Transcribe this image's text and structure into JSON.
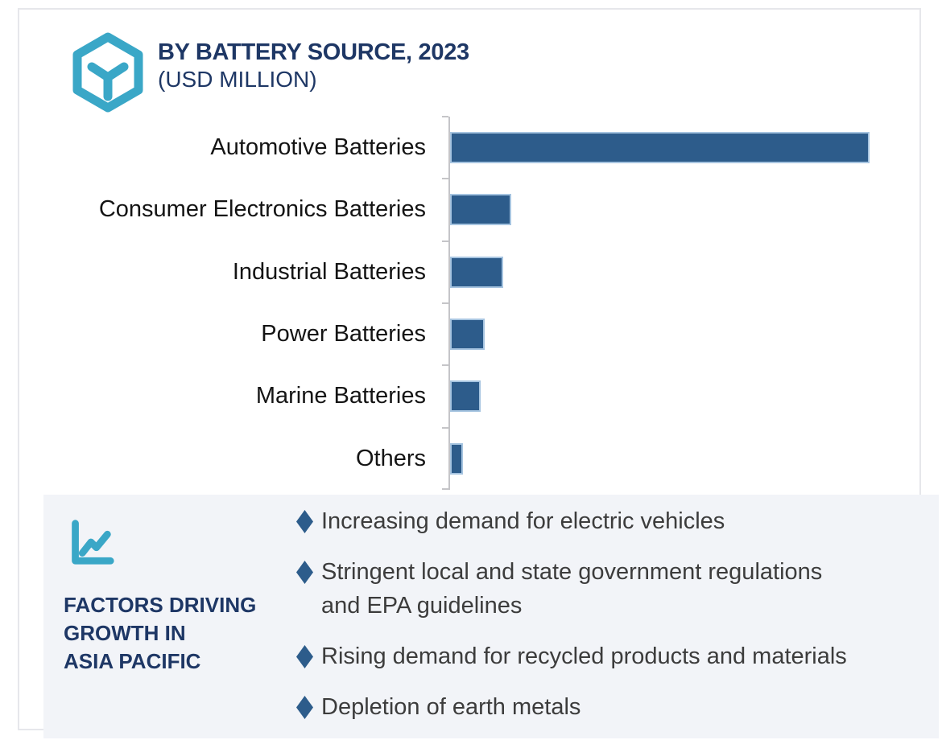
{
  "header": {
    "title": "BY BATTERY SOURCE, 2023",
    "subtitle": "(USD MILLION)",
    "logo_icon": "hexagon-cube-icon"
  },
  "colors": {
    "accent_teal": "#3aa7c7",
    "navy": "#1e3765",
    "bar_blue": "#2d5c8b",
    "bar_border_light_blue": "#a6c4e0",
    "panel_background": "#f2f4f8",
    "axis_gray": "#c5c5c8",
    "body_text": "#3c3c3c"
  },
  "chart_data": {
    "type": "bar",
    "orientation": "horizontal",
    "title": "BY BATTERY SOURCE, 2023",
    "units_label": "(USD MILLION)",
    "categories": [
      "Automotive Batteries",
      "Consumer Electronics Batteries",
      "Industrial Batteries",
      "Power Batteries",
      "Marine Batteries",
      "Others"
    ],
    "values_relative_pct_of_max": [
      100,
      14.6,
      12.7,
      8.3,
      7.3,
      3.1
    ],
    "data_labels_shown": false,
    "value_axis_shown": false,
    "grid": false,
    "legend": "none",
    "bar_color": "#2d5c8b"
  },
  "factors": {
    "icon": "line-chart-icon",
    "heading_lines": [
      "FACTORS DRIVING",
      "GROWTH IN",
      "ASIA PACIFIC"
    ],
    "items": [
      "Increasing demand for electric vehicles",
      "Stringent local and state government regulations\nand EPA guidelines",
      "Rising demand for recycled products and materials",
      "Depletion of earth metals"
    ]
  }
}
